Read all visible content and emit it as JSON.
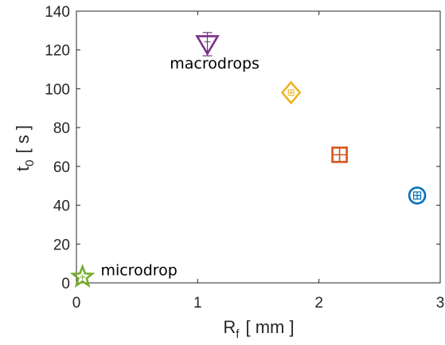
{
  "chart_data": {
    "type": "scatter",
    "x_axis": {
      "label_main": "R",
      "label_sub": "f",
      "label_unit": "[ mm ]",
      "range": [
        0,
        3
      ],
      "ticks": [
        "0",
        "1",
        "2",
        "3"
      ]
    },
    "y_axis": {
      "label_main": "t",
      "label_sub": "0",
      "label_unit": "[ s ]",
      "range": [
        0,
        140
      ],
      "ticks": [
        "0",
        "20",
        "40",
        "60",
        "80",
        "100",
        "120",
        "140"
      ]
    },
    "grid": false,
    "points": [
      {
        "x": 0.05,
        "y": 3,
        "err": 0,
        "marker": "star",
        "color": "#77ac30"
      },
      {
        "x": 1.08,
        "y": 123,
        "err": 6,
        "marker": "triangle-down",
        "color": "#7e2f8e"
      },
      {
        "x": 1.77,
        "y": 98,
        "err": 0,
        "marker": "diamond",
        "color": "#edb120"
      },
      {
        "x": 2.17,
        "y": 66,
        "err": 0,
        "marker": "square",
        "color": "#d95319"
      },
      {
        "x": 2.81,
        "y": 45,
        "err": 0,
        "marker": "circle",
        "color": "#0072bd"
      }
    ],
    "annotations": [
      {
        "text": "macrodrops",
        "x": 0.77,
        "y": 110.5
      },
      {
        "text": "microdrop",
        "x": 0.2,
        "y": 4
      }
    ]
  }
}
